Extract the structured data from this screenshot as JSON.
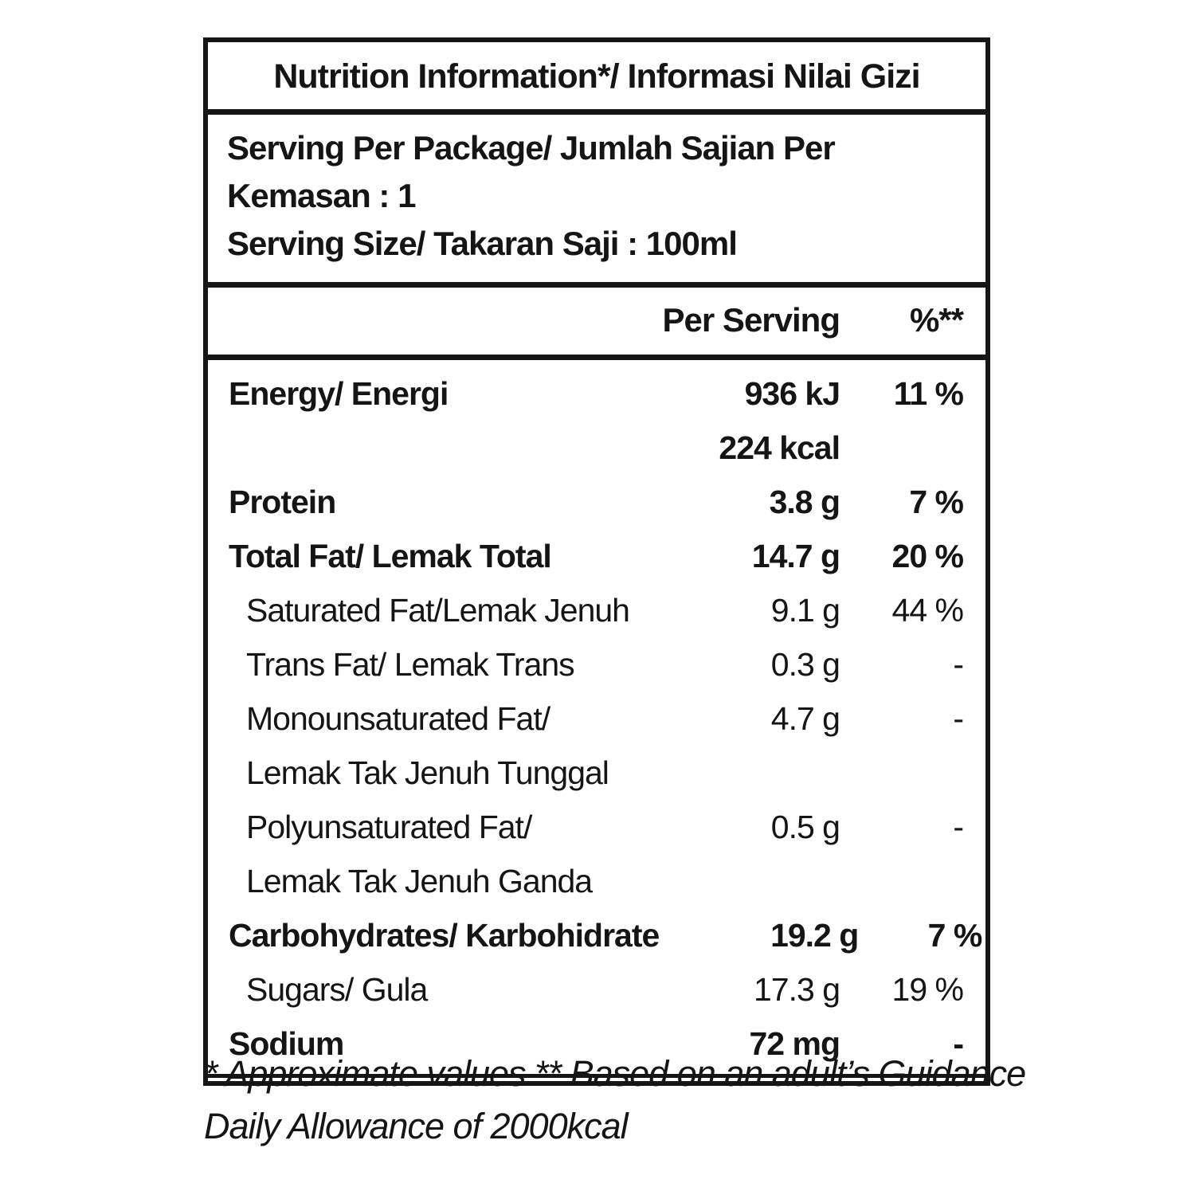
{
  "title": "Nutrition Information*/ Informasi Nilai Gizi",
  "serving": {
    "per_package": "Serving Per Package/ Jumlah Sajian Per Kemasan : 1",
    "size": "Serving Size/ Takaran Saji : 100ml"
  },
  "columns": {
    "per_serving": "Per Serving",
    "percent": "%**"
  },
  "rows": [
    {
      "label": "Energy/ Energi",
      "value": "936 kJ",
      "pct": "11 %"
    },
    {
      "label": "",
      "value": "224 kcal",
      "pct": ""
    },
    {
      "label": "Protein",
      "value": "3.8 g",
      "pct": "7 %"
    },
    {
      "label": "Total Fat/ Lemak Total",
      "value": "14.7 g",
      "pct": "20 %"
    },
    {
      "label": "Saturated Fat/Lemak Jenuh",
      "value": "9.1 g",
      "pct": "44 %"
    },
    {
      "label": "Trans Fat/ Lemak Trans",
      "value": "0.3 g",
      "pct": "-"
    },
    {
      "label": "Monounsaturated Fat/",
      "value": "4.7 g",
      "pct": "-"
    },
    {
      "label": "Lemak Tak Jenuh Tunggal",
      "value": "",
      "pct": ""
    },
    {
      "label": "Polyunsaturated Fat/",
      "value": "0.5 g",
      "pct": "-"
    },
    {
      "label": "Lemak Tak Jenuh Ganda",
      "value": "",
      "pct": ""
    },
    {
      "label": "Carbohydrates/ Karbohidrate",
      "value": "19.2 g",
      "pct": "7 %"
    },
    {
      "label": "Sugars/ Gula",
      "value": "17.3 g",
      "pct": "19 %"
    },
    {
      "label": "Sodium",
      "value": "72 mg",
      "pct": "-"
    }
  ],
  "footnote": {
    "line1": "* Approximate values  ** Based on an adult’s Guidance",
    "line2": "Daily Allowance of 2000kcal"
  },
  "colors": {
    "ink": "#151515",
    "background": "#ffffff"
  }
}
